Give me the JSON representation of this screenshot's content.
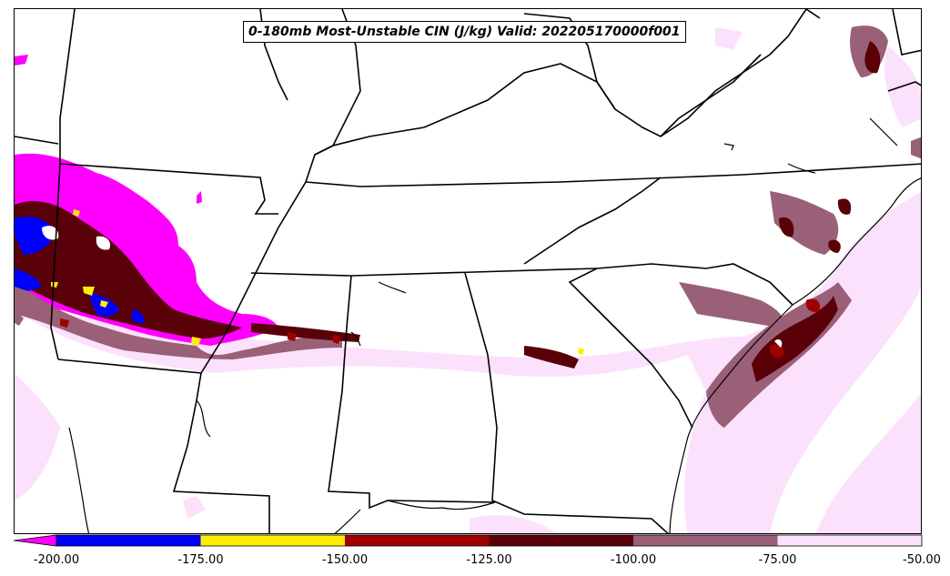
{
  "title": "0-180mb Most-Unstable CIN (J/kg) Valid: 202205170000f001",
  "colorbar": {
    "bins": [
      {
        "from": -200,
        "to": -175,
        "color": "#0000ff"
      },
      {
        "from": -175,
        "to": -150,
        "color": "#ffee00"
      },
      {
        "from": -150,
        "to": -125,
        "color": "#a00000"
      },
      {
        "from": -125,
        "to": -100,
        "color": "#5a0008"
      },
      {
        "from": -100,
        "to": -75,
        "color": "#9a6078"
      },
      {
        "from": -75,
        "to": -50,
        "color": "#fbe1fb"
      }
    ],
    "extend_low_color": "#ff00ff",
    "ticks": [
      "-200.00",
      "-175.00",
      "-150.00",
      "-125.00",
      "-100.00",
      "-75.00",
      "-50.00"
    ]
  },
  "colors": {
    "lt_neg_200": "#ff00ff",
    "neg_200_175": "#0000ff",
    "neg_175_150": "#ffee00",
    "neg_150_125": "#a00000",
    "neg_125_100": "#5a0008",
    "neg_100_75": "#9a6078",
    "neg_75_50": "#fbe1fb"
  }
}
